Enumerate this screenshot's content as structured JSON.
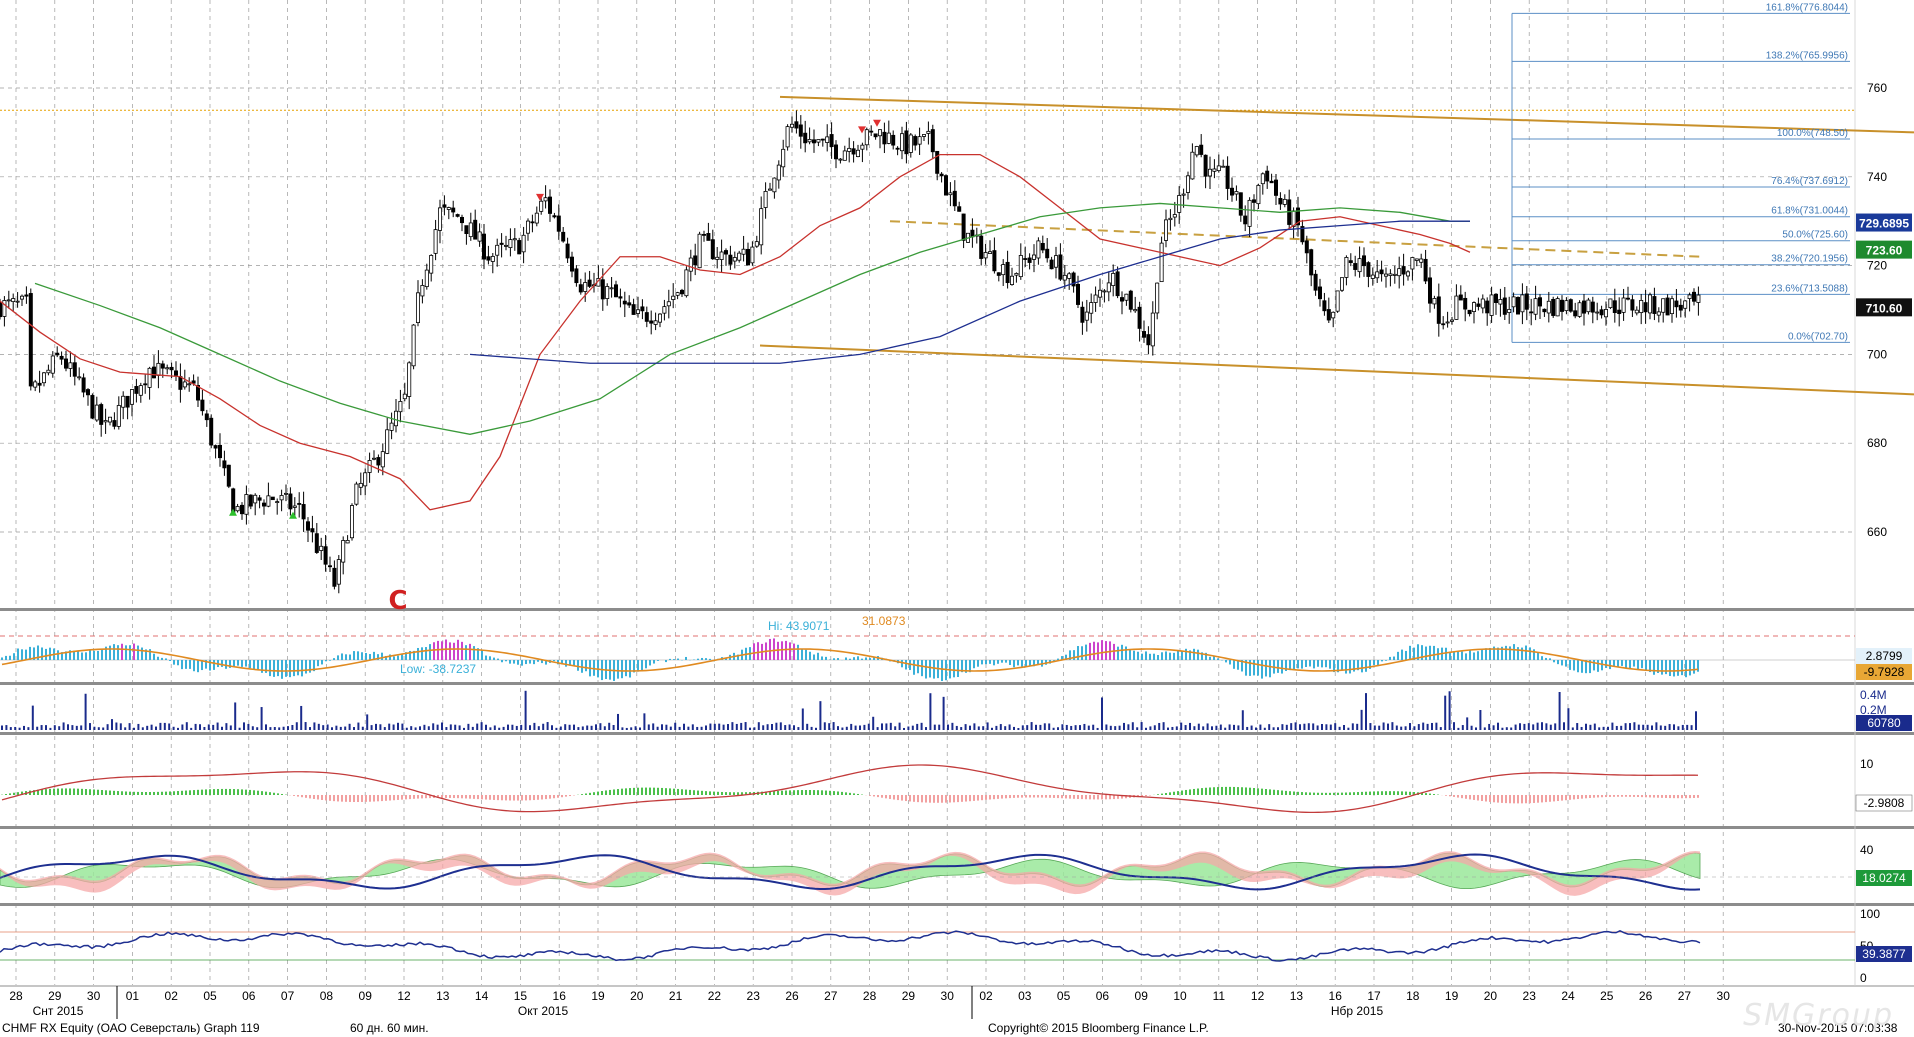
{
  "footer": {
    "security": "CHMF RX Equity (ОАО Северсталь) Graph 119",
    "period": "60 дн. 60 мин.",
    "copyright": "Copyright© 2015 Bloomberg Finance L.P.",
    "timestamp": "30-Nov-2015 07:03:38",
    "watermark": "SMGroup"
  },
  "chart_data": [
    {
      "panel": "price",
      "type": "candlestick",
      "ylim": [
        640,
        780
      ],
      "y_ticks": [
        660,
        680,
        700,
        720,
        740,
        760
      ],
      "x_day_labels": [
        "28",
        "29",
        "30",
        "01",
        "02",
        "05",
        "06",
        "07",
        "08",
        "09",
        "12",
        "13",
        "14",
        "15",
        "16",
        "19",
        "20",
        "21",
        "22",
        "23",
        "26",
        "27",
        "28",
        "29",
        "30",
        "02",
        "03",
        "05",
        "06",
        "09",
        "10",
        "11",
        "12",
        "13",
        "16",
        "17",
        "18",
        "19",
        "20",
        "23",
        "24",
        "25",
        "26",
        "27",
        "30"
      ],
      "month_labels": [
        "Снт 2015",
        "Окт 2015",
        "Нбр 2015"
      ],
      "last_price": 710.6,
      "price_tags": [
        {
          "label": "729.6895",
          "color": "#1a3a9a"
        },
        {
          "label": "723.60",
          "color": "#1e8a2e"
        },
        {
          "label": "710.60",
          "color": "#111111"
        }
      ],
      "fibonacci": [
        {
          "label": "161.8%(776.8044)",
          "value": 776.8044
        },
        {
          "label": "138.2%(765.9956)",
          "value": 765.9956
        },
        {
          "label": "100.0%(748.50)",
          "value": 748.5
        },
        {
          "label": "76.4%(737.6912)",
          "value": 737.6912
        },
        {
          "label": "61.8%(731.0044)",
          "value": 731.0044
        },
        {
          "label": "50.0%(725.60)",
          "value": 725.6
        },
        {
          "label": "38.2%(720.1956)",
          "value": 720.1956
        },
        {
          "label": "23.6%(713.5088)",
          "value": 713.5088
        },
        {
          "label": "0.0%(702.70)",
          "value": 702.7
        }
      ],
      "annotation": "C",
      "resistance_level": 755,
      "channel_upper": [
        [
          780,
          758
        ],
        [
          1914,
          750
        ]
      ],
      "channel_lower": [
        [
          760,
          702
        ],
        [
          1914,
          691
        ]
      ],
      "midline": [
        [
          890,
          730
        ],
        [
          1700,
          722
        ]
      ],
      "anchors": [
        [
          28,
          690
        ],
        [
          45,
          695
        ],
        [
          60,
          700
        ],
        [
          105,
          683
        ],
        [
          150,
          697
        ],
        [
          195,
          692
        ],
        [
          235,
          665
        ],
        [
          270,
          668
        ],
        [
          300,
          665
        ],
        [
          335,
          648
        ],
        [
          355,
          668
        ],
        [
          380,
          678
        ],
        [
          405,
          690
        ],
        [
          420,
          715
        ],
        [
          440,
          732
        ],
        [
          460,
          731
        ],
        [
          490,
          722
        ],
        [
          520,
          725
        ],
        [
          545,
          735
        ],
        [
          560,
          728
        ],
        [
          580,
          716
        ],
        [
          610,
          714
        ],
        [
          635,
          708
        ],
        [
          660,
          710
        ],
        [
          680,
          715
        ],
        [
          700,
          725
        ],
        [
          725,
          722
        ],
        [
          750,
          722
        ],
        [
          772,
          740
        ],
        [
          790,
          752
        ],
        [
          810,
          748
        ],
        [
          840,
          746
        ],
        [
          860,
          748
        ],
        [
          880,
          750
        ],
        [
          905,
          747
        ],
        [
          930,
          748
        ],
        [
          945,
          738
        ],
        [
          965,
          727
        ],
        [
          990,
          722
        ],
        [
          1010,
          718
        ],
        [
          1040,
          724
        ],
        [
          1065,
          718
        ],
        [
          1085,
          708
        ],
        [
          1110,
          718
        ],
        [
          1130,
          712
        ],
        [
          1150,
          702
        ],
        [
          1160,
          725
        ],
        [
          1180,
          735
        ],
        [
          1195,
          748
        ],
        [
          1210,
          740
        ],
        [
          1225,
          740
        ],
        [
          1245,
          730
        ],
        [
          1265,
          742
        ],
        [
          1280,
          734
        ],
        [
          1300,
          728
        ],
        [
          1315,
          714
        ],
        [
          1330,
          705
        ],
        [
          1345,
          720
        ],
        [
          1365,
          720
        ],
        [
          1385,
          716
        ],
        [
          1400,
          719
        ],
        [
          1420,
          722
        ],
        [
          1435,
          710
        ],
        [
          1445,
          708
        ],
        [
          1455,
          711
        ]
      ],
      "ma_red": [
        [
          0,
          712
        ],
        [
          40,
          705
        ],
        [
          80,
          699
        ],
        [
          120,
          696
        ],
        [
          180,
          695
        ],
        [
          220,
          690
        ],
        [
          260,
          684
        ],
        [
          300,
          680
        ],
        [
          350,
          677
        ],
        [
          400,
          672
        ],
        [
          430,
          665
        ],
        [
          470,
          667
        ],
        [
          500,
          677
        ],
        [
          540,
          700
        ],
        [
          580,
          712
        ],
        [
          620,
          722
        ],
        [
          660,
          722
        ],
        [
          700,
          719
        ],
        [
          740,
          718
        ],
        [
          780,
          722
        ],
        [
          820,
          729
        ],
        [
          860,
          733
        ],
        [
          900,
          740
        ],
        [
          940,
          745
        ],
        [
          980,
          745
        ],
        [
          1020,
          740
        ],
        [
          1060,
          733
        ],
        [
          1100,
          726
        ],
        [
          1140,
          724
        ],
        [
          1180,
          722
        ],
        [
          1220,
          720
        ],
        [
          1260,
          724
        ],
        [
          1300,
          730
        ],
        [
          1340,
          731
        ],
        [
          1380,
          729
        ],
        [
          1420,
          727
        ],
        [
          1450,
          725
        ],
        [
          1470,
          723
        ]
      ],
      "ma_green": [
        [
          35,
          716
        ],
        [
          100,
          711
        ],
        [
          160,
          706
        ],
        [
          220,
          700
        ],
        [
          280,
          694
        ],
        [
          340,
          689
        ],
        [
          400,
          685
        ],
        [
          470,
          682
        ],
        [
          530,
          685
        ],
        [
          600,
          690
        ],
        [
          670,
          700
        ],
        [
          740,
          706
        ],
        [
          800,
          712
        ],
        [
          860,
          718
        ],
        [
          920,
          723
        ],
        [
          980,
          727
        ],
        [
          1040,
          731
        ],
        [
          1100,
          733
        ],
        [
          1160,
          734
        ],
        [
          1220,
          733
        ],
        [
          1280,
          732
        ],
        [
          1340,
          733
        ],
        [
          1400,
          732
        ],
        [
          1450,
          730
        ],
        [
          1470,
          730
        ]
      ],
      "ma_blue": [
        [
          470,
          700
        ],
        [
          530,
          699
        ],
        [
          590,
          698
        ],
        [
          650,
          698
        ],
        [
          720,
          698
        ],
        [
          780,
          698
        ],
        [
          860,
          700
        ],
        [
          940,
          704
        ],
        [
          1020,
          712
        ],
        [
          1100,
          718
        ],
        [
          1160,
          722
        ],
        [
          1220,
          726
        ],
        [
          1280,
          728
        ],
        [
          1340,
          729
        ],
        [
          1400,
          730
        ],
        [
          1470,
          730
        ]
      ],
      "signals": [
        {
          "x": 233,
          "kind": "up"
        },
        {
          "x": 293,
          "kind": "up"
        },
        {
          "x": 540,
          "kind": "down"
        },
        {
          "x": 862,
          "kind": "down"
        },
        {
          "x": 877,
          "kind": "down"
        }
      ]
    },
    {
      "panel": "oscillator",
      "type": "bar+line",
      "labels": [
        "Hi: 43.9071",
        "31.0873",
        "Low: -38.7237"
      ],
      "tags": [
        {
          "label": "2.8799",
          "color": "#d9eef8"
        },
        {
          "label": "-9.7928",
          "color": "#e8a735"
        }
      ]
    },
    {
      "panel": "volume",
      "type": "bar",
      "y_ticks": [
        "0.4M",
        "0.2M"
      ],
      "last_value": "60780"
    },
    {
      "panel": "macd",
      "type": "line+histogram",
      "y_ticks": [
        "10"
      ],
      "last_value": "-2.9808"
    },
    {
      "panel": "dmi",
      "type": "area+line",
      "y_ticks": [
        "40"
      ],
      "last_value": "18.0274"
    },
    {
      "panel": "rsi",
      "type": "line",
      "y_ticks": [
        "100",
        "50",
        "0"
      ],
      "last_value": "39.3877"
    }
  ]
}
